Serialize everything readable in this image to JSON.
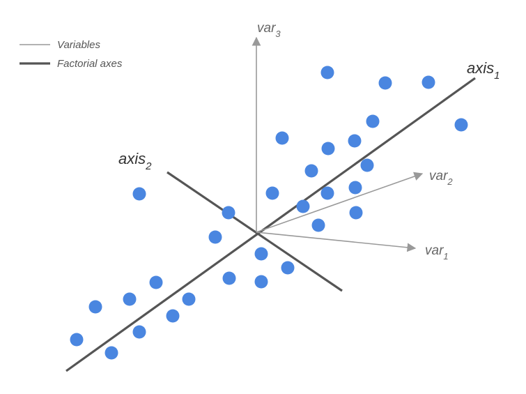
{
  "legend": {
    "variables_label": "Variables",
    "factorial_axes_label": "Factorial axes"
  },
  "labels": {
    "var1": {
      "base": "var",
      "sub": "1"
    },
    "var2": {
      "base": "var",
      "sub": "2"
    },
    "var3": {
      "base": "var",
      "sub": "3"
    },
    "axis1": {
      "base": "axis",
      "sub": "1"
    },
    "axis2": {
      "base": "axis",
      "sub": "2"
    }
  },
  "colors": {
    "points": "#4a86e0",
    "variables": "#999999",
    "axes": "#555555"
  }
}
